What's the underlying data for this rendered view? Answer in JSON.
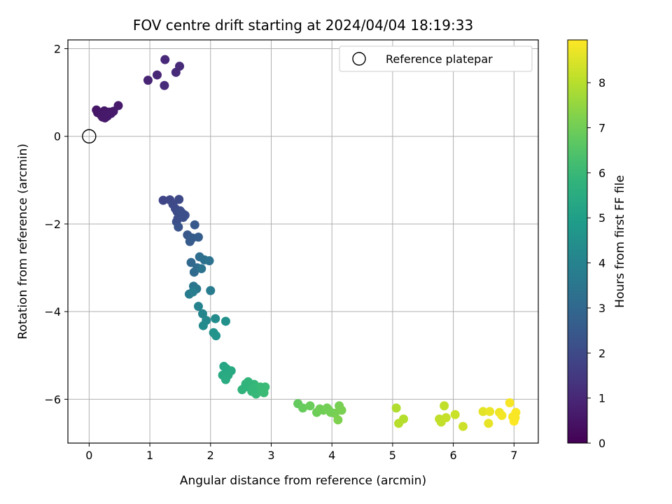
{
  "chart_data": {
    "type": "scatter",
    "title": "FOV centre drift starting at 2024/04/04 18:19:33",
    "xlabel": "Angular distance from reference (arcmin)",
    "ylabel": "Rotation from reference (arcmin)",
    "xlim": [
      -0.35,
      7.4
    ],
    "ylim": [
      -7.0,
      2.2
    ],
    "xticks": [
      0,
      1,
      2,
      3,
      4,
      5,
      6,
      7
    ],
    "yticks": [
      -6,
      -4,
      -2,
      0,
      2
    ],
    "xtick_labels": [
      "0",
      "1",
      "2",
      "3",
      "4",
      "5",
      "6",
      "7"
    ],
    "ytick_labels": [
      "−6",
      "−4",
      "−2",
      "0",
      "2"
    ],
    "grid": true,
    "colormap": "viridis",
    "colorbar": {
      "label": "Hours from first FF file",
      "range": [
        0,
        8.95
      ],
      "ticks": [
        0,
        1,
        2,
        3,
        4,
        5,
        6,
        7,
        8
      ],
      "tick_labels": [
        "0",
        "1",
        "2",
        "3",
        "4",
        "5",
        "6",
        "7",
        "8"
      ]
    },
    "legend": {
      "position": "top-right",
      "entries": [
        "Reference platepar"
      ]
    },
    "reference_point": {
      "x": 0,
      "y": 0
    },
    "series": [
      {
        "x": [
          0.12,
          0.18,
          0.22,
          0.25,
          0.28,
          0.32,
          0.36,
          0.4,
          0.48,
          0.14,
          0.2,
          0.26,
          0.3,
          0.34,
          0.97,
          1.12,
          1.25,
          1.43,
          1.49,
          1.24,
          1.22,
          1.33,
          1.38,
          1.42,
          1.45,
          1.48,
          1.5,
          1.53,
          1.58,
          1.44,
          1.47,
          1.62,
          1.66,
          1.7,
          1.74,
          1.8,
          1.46,
          1.55,
          1.68,
          1.73,
          1.78,
          1.82,
          1.9,
          1.98,
          1.72,
          1.77,
          1.85,
          2.0,
          1.65,
          1.71,
          1.8,
          1.87,
          1.93,
          2.08,
          2.25,
          1.88,
          2.05,
          2.09,
          2.22,
          2.26,
          2.34,
          2.2,
          2.29,
          2.25,
          2.52,
          2.58,
          2.66,
          2.72,
          2.78,
          2.85,
          2.9,
          2.62,
          2.68,
          2.75,
          2.82,
          2.88,
          2.57,
          2.7,
          3.44,
          3.52,
          3.64,
          3.75,
          3.8,
          3.86,
          3.92,
          3.98,
          4.05,
          4.12,
          4.16,
          4.1,
          3.95,
          5.06,
          5.18,
          5.1,
          5.77,
          5.8,
          5.85,
          5.88,
          6.03,
          6.16,
          6.49,
          6.58,
          6.6,
          6.76,
          6.8,
          6.93,
          6.98,
          7.03,
          7.0,
          7.02
        ]
      }
    ],
    "points": [
      {
        "x": 0.12,
        "y": 0.6,
        "t": 0.55
      },
      {
        "x": 0.18,
        "y": 0.52,
        "t": 0.57
      },
      {
        "x": 0.22,
        "y": 0.44,
        "t": 0.6
      },
      {
        "x": 0.25,
        "y": 0.58,
        "t": 0.58
      },
      {
        "x": 0.28,
        "y": 0.48,
        "t": 0.6
      },
      {
        "x": 0.32,
        "y": 0.55,
        "t": 0.62
      },
      {
        "x": 0.36,
        "y": 0.52,
        "t": 0.62
      },
      {
        "x": 0.4,
        "y": 0.57,
        "t": 0.63
      },
      {
        "x": 0.48,
        "y": 0.7,
        "t": 0.65
      },
      {
        "x": 0.14,
        "y": 0.54,
        "t": 0.56
      },
      {
        "x": 0.2,
        "y": 0.48,
        "t": 0.58
      },
      {
        "x": 0.26,
        "y": 0.42,
        "t": 0.6
      },
      {
        "x": 0.3,
        "y": 0.46,
        "t": 0.6
      },
      {
        "x": 0.34,
        "y": 0.55,
        "t": 0.61
      },
      {
        "x": 0.97,
        "y": 1.28,
        "t": 0.9
      },
      {
        "x": 1.12,
        "y": 1.4,
        "t": 0.95
      },
      {
        "x": 1.25,
        "y": 1.75,
        "t": 1.0
      },
      {
        "x": 1.43,
        "y": 1.46,
        "t": 1.05
      },
      {
        "x": 1.49,
        "y": 1.6,
        "t": 1.08
      },
      {
        "x": 1.24,
        "y": 1.16,
        "t": 1.1
      },
      {
        "x": 1.22,
        "y": -1.46,
        "t": 1.85
      },
      {
        "x": 1.33,
        "y": -1.45,
        "t": 1.9
      },
      {
        "x": 1.38,
        "y": -1.55,
        "t": 1.95
      },
      {
        "x": 1.42,
        "y": -1.65,
        "t": 2.0
      },
      {
        "x": 1.45,
        "y": -1.72,
        "t": 2.05
      },
      {
        "x": 1.48,
        "y": -1.44,
        "t": 1.95
      },
      {
        "x": 1.5,
        "y": -1.7,
        "t": 2.1
      },
      {
        "x": 1.53,
        "y": -1.75,
        "t": 2.15
      },
      {
        "x": 1.58,
        "y": -1.8,
        "t": 2.2
      },
      {
        "x": 1.44,
        "y": -1.95,
        "t": 2.2
      },
      {
        "x": 1.47,
        "y": -2.07,
        "t": 2.3
      },
      {
        "x": 1.62,
        "y": -2.25,
        "t": 2.45
      },
      {
        "x": 1.66,
        "y": -2.4,
        "t": 2.55
      },
      {
        "x": 1.7,
        "y": -2.32,
        "t": 2.6
      },
      {
        "x": 1.74,
        "y": -2.02,
        "t": 2.5
      },
      {
        "x": 1.8,
        "y": -2.3,
        "t": 2.65
      },
      {
        "x": 1.46,
        "y": -1.88,
        "t": 2.1
      },
      {
        "x": 1.55,
        "y": -1.85,
        "t": 2.2
      },
      {
        "x": 1.68,
        "y": -2.88,
        "t": 3.0
      },
      {
        "x": 1.73,
        "y": -3.1,
        "t": 3.1
      },
      {
        "x": 1.78,
        "y": -3.0,
        "t": 3.15
      },
      {
        "x": 1.82,
        "y": -2.75,
        "t": 3.2
      },
      {
        "x": 1.9,
        "y": -2.82,
        "t": 3.3
      },
      {
        "x": 1.98,
        "y": -2.84,
        "t": 3.35
      },
      {
        "x": 1.72,
        "y": -3.42,
        "t": 3.5
      },
      {
        "x": 1.77,
        "y": -3.48,
        "t": 3.6
      },
      {
        "x": 1.85,
        "y": -3.02,
        "t": 3.4
      },
      {
        "x": 2.0,
        "y": -3.52,
        "t": 3.7
      },
      {
        "x": 1.65,
        "y": -3.6,
        "t": 3.75
      },
      {
        "x": 1.71,
        "y": -3.55,
        "t": 3.8
      },
      {
        "x": 1.8,
        "y": -3.88,
        "t": 4.0
      },
      {
        "x": 1.87,
        "y": -4.05,
        "t": 4.1
      },
      {
        "x": 1.93,
        "y": -4.2,
        "t": 4.2
      },
      {
        "x": 2.08,
        "y": -4.16,
        "t": 4.3
      },
      {
        "x": 2.25,
        "y": -4.22,
        "t": 4.5
      },
      {
        "x": 1.88,
        "y": -4.32,
        "t": 4.3
      },
      {
        "x": 2.05,
        "y": -4.48,
        "t": 4.55
      },
      {
        "x": 2.09,
        "y": -4.55,
        "t": 4.6
      },
      {
        "x": 2.22,
        "y": -5.25,
        "t": 5.3
      },
      {
        "x": 2.26,
        "y": -5.3,
        "t": 5.35
      },
      {
        "x": 2.34,
        "y": -5.35,
        "t": 5.4
      },
      {
        "x": 2.2,
        "y": -5.45,
        "t": 5.4
      },
      {
        "x": 2.29,
        "y": -5.45,
        "t": 5.45
      },
      {
        "x": 2.25,
        "y": -5.55,
        "t": 5.5
      },
      {
        "x": 2.52,
        "y": -5.78,
        "t": 5.8
      },
      {
        "x": 2.58,
        "y": -5.65,
        "t": 5.85
      },
      {
        "x": 2.66,
        "y": -5.7,
        "t": 5.9
      },
      {
        "x": 2.72,
        "y": -5.66,
        "t": 5.95
      },
      {
        "x": 2.78,
        "y": -5.8,
        "t": 6.0
      },
      {
        "x": 2.85,
        "y": -5.74,
        "t": 6.05
      },
      {
        "x": 2.9,
        "y": -5.72,
        "t": 6.1
      },
      {
        "x": 2.62,
        "y": -5.6,
        "t": 5.85
      },
      {
        "x": 2.68,
        "y": -5.82,
        "t": 5.95
      },
      {
        "x": 2.75,
        "y": -5.88,
        "t": 6.0
      },
      {
        "x": 2.82,
        "y": -5.72,
        "t": 6.05
      },
      {
        "x": 2.88,
        "y": -5.85,
        "t": 6.1
      },
      {
        "x": 2.57,
        "y": -5.72,
        "t": 5.8
      },
      {
        "x": 2.7,
        "y": -5.75,
        "t": 5.95
      },
      {
        "x": 3.44,
        "y": -6.1,
        "t": 6.8
      },
      {
        "x": 3.52,
        "y": -6.2,
        "t": 6.85
      },
      {
        "x": 3.64,
        "y": -6.15,
        "t": 6.9
      },
      {
        "x": 3.75,
        "y": -6.3,
        "t": 6.95
      },
      {
        "x": 3.8,
        "y": -6.22,
        "t": 7.0
      },
      {
        "x": 3.86,
        "y": -6.25,
        "t": 7.0
      },
      {
        "x": 3.92,
        "y": -6.2,
        "t": 7.05
      },
      {
        "x": 3.98,
        "y": -6.3,
        "t": 7.05
      },
      {
        "x": 4.05,
        "y": -6.32,
        "t": 7.1
      },
      {
        "x": 4.12,
        "y": -6.15,
        "t": 7.1
      },
      {
        "x": 4.16,
        "y": -6.25,
        "t": 7.15
      },
      {
        "x": 4.1,
        "y": -6.47,
        "t": 7.2
      },
      {
        "x": 3.95,
        "y": -6.25,
        "t": 7.05
      },
      {
        "x": 5.06,
        "y": -6.2,
        "t": 7.9
      },
      {
        "x": 5.18,
        "y": -6.45,
        "t": 7.95
      },
      {
        "x": 5.1,
        "y": -6.55,
        "t": 8.0
      },
      {
        "x": 5.77,
        "y": -6.45,
        "t": 8.1
      },
      {
        "x": 5.8,
        "y": -6.52,
        "t": 8.15
      },
      {
        "x": 5.85,
        "y": -6.15,
        "t": 8.1
      },
      {
        "x": 5.88,
        "y": -6.42,
        "t": 8.2
      },
      {
        "x": 6.03,
        "y": -6.35,
        "t": 8.25
      },
      {
        "x": 6.16,
        "y": -6.62,
        "t": 8.3
      },
      {
        "x": 6.49,
        "y": -6.28,
        "t": 8.6
      },
      {
        "x": 6.58,
        "y": -6.55,
        "t": 8.65
      },
      {
        "x": 6.6,
        "y": -6.28,
        "t": 8.7
      },
      {
        "x": 6.76,
        "y": -6.3,
        "t": 8.75
      },
      {
        "x": 6.8,
        "y": -6.37,
        "t": 8.8
      },
      {
        "x": 6.93,
        "y": -6.08,
        "t": 8.85
      },
      {
        "x": 6.98,
        "y": -6.4,
        "t": 8.85
      },
      {
        "x": 7.03,
        "y": -6.3,
        "t": 8.9
      },
      {
        "x": 7.0,
        "y": -6.5,
        "t": 8.95
      },
      {
        "x": 7.02,
        "y": -6.42,
        "t": 8.9
      }
    ]
  }
}
